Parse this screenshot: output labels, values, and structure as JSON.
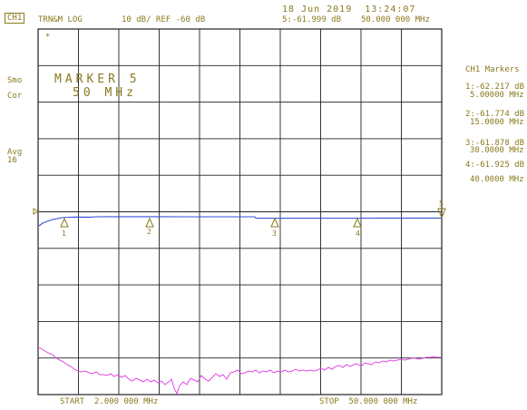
{
  "header": {
    "channel": "CH1",
    "measurement": "TRN&M LOG",
    "scale": "10 dB/ REF -60 dB",
    "date_time": "18 Jun 2019  13:24:07",
    "active_marker_value": "5:-61.999 dB",
    "active_marker_freq": "50.000 000 MHz"
  },
  "left_annotations": {
    "star": "*",
    "smo": "Smo",
    "cor": "Cor",
    "avg": "Avg",
    "avg_count": "16"
  },
  "marker_box": {
    "title": "MARKER 5",
    "value": "50 MHz"
  },
  "marker_list": {
    "title": "CH1 Markers",
    "items": [
      {
        "value": "1:-62.217 dB",
        "freq": "5.00000 MHz"
      },
      {
        "value": "2:-61.774 dB",
        "freq": "15.0000 MHz"
      },
      {
        "value": "3:-61.878 dB",
        "freq": "30.0000 MHz"
      },
      {
        "value": "4:-61.925 dB",
        "freq": "40.0000 MHz"
      }
    ]
  },
  "footer": {
    "start": "START  2.000 000 MHz",
    "stop": "STOP  50.000 000 MHz"
  },
  "trace_markers": [
    "1",
    "2",
    "3",
    "4",
    "5"
  ],
  "colors": {
    "text": "#8a7a1e",
    "grid": "#222222",
    "trace_blue": "#3a4fd8",
    "trace_magenta": "#e24ae6"
  },
  "chart_data": {
    "type": "line",
    "x_range_mhz": [
      2,
      50
    ],
    "y_divisions": 10,
    "scale_db_per_div": 10,
    "reference_db": -60,
    "marker_freqs_mhz": [
      5,
      15,
      30,
      40,
      50
    ],
    "marker_values_db": [
      -62.217,
      -61.774,
      -61.878,
      -61.925,
      -61.999
    ]
  }
}
